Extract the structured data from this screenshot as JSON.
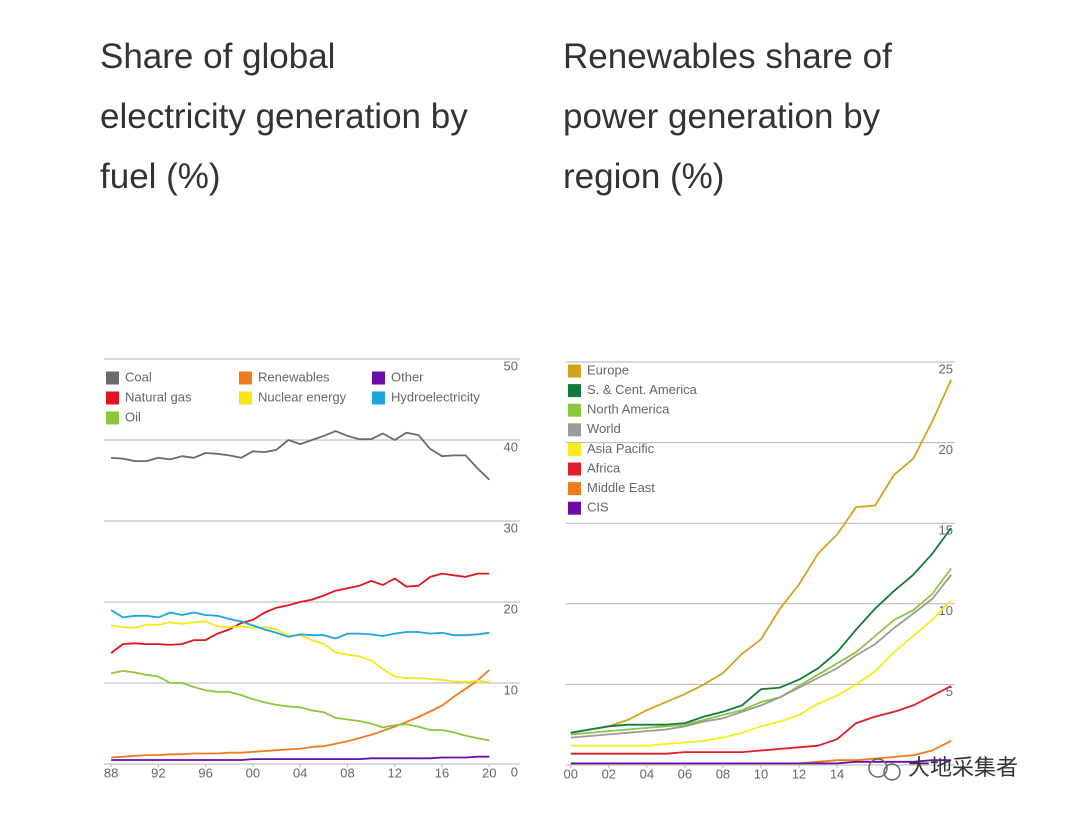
{
  "chart_data": [
    {
      "type": "line",
      "title": [
        "Share of global",
        "electricity generation by",
        "fuel (%)"
      ],
      "x": [
        1988,
        1989,
        1990,
        1991,
        1992,
        1993,
        1994,
        1995,
        1996,
        1997,
        1998,
        1999,
        2000,
        2001,
        2002,
        2003,
        2004,
        2005,
        2006,
        2007,
        2008,
        2009,
        2010,
        2011,
        2012,
        2013,
        2014,
        2015,
        2016,
        2017,
        2018,
        2019,
        2020
      ],
      "xlim": [
        1987.4,
        2022.6
      ],
      "xticks": [
        {
          "value": 1988,
          "label": "88"
        },
        {
          "value": 1992,
          "label": "92"
        },
        {
          "value": 1996,
          "label": "96"
        },
        {
          "value": 2000,
          "label": "00"
        },
        {
          "value": 2004,
          "label": "04"
        },
        {
          "value": 2008,
          "label": "08"
        },
        {
          "value": 2012,
          "label": "12"
        },
        {
          "value": 2016,
          "label": "16"
        },
        {
          "value": 2020,
          "label": "20"
        }
      ],
      "ylim": [
        0,
        50
      ],
      "yticks": [
        0,
        10,
        20,
        30,
        40,
        50
      ],
      "grid": true,
      "legend": "top-left",
      "legend_columns": 3,
      "series": [
        {
          "name": "Coal",
          "color": "#6b6b6b",
          "values": [
            37.8,
            37.7,
            37.4,
            37.4,
            37.8,
            37.6,
            38.0,
            37.8,
            38.4,
            38.3,
            38.1,
            37.8,
            38.6,
            38.5,
            38.8,
            40.0,
            39.5,
            40.0,
            40.5,
            41.1,
            40.5,
            40.1,
            40.1,
            40.8,
            40.0,
            40.9,
            40.6,
            38.9,
            38.0,
            38.1,
            38.1,
            36.5,
            35.1
          ]
        },
        {
          "name": "Renewables",
          "color": "#f07a1c",
          "values": [
            0.8,
            0.9,
            1.0,
            1.1,
            1.1,
            1.2,
            1.2,
            1.3,
            1.3,
            1.3,
            1.4,
            1.4,
            1.5,
            1.6,
            1.7,
            1.8,
            1.9,
            2.1,
            2.2,
            2.5,
            2.8,
            3.2,
            3.6,
            4.1,
            4.6,
            5.2,
            5.8,
            6.5,
            7.2,
            8.3,
            9.3,
            10.3,
            11.6
          ]
        },
        {
          "name": "Other",
          "color": "#6a0dad",
          "values": [
            0.5,
            0.5,
            0.5,
            0.5,
            0.5,
            0.5,
            0.5,
            0.5,
            0.5,
            0.5,
            0.5,
            0.5,
            0.6,
            0.6,
            0.6,
            0.6,
            0.6,
            0.6,
            0.6,
            0.6,
            0.6,
            0.6,
            0.7,
            0.7,
            0.7,
            0.7,
            0.7,
            0.7,
            0.8,
            0.8,
            0.8,
            0.9,
            0.9
          ]
        },
        {
          "name": "Natural gas",
          "color": "#e2151f",
          "values": [
            13.7,
            14.8,
            14.9,
            14.8,
            14.8,
            14.7,
            14.8,
            15.3,
            15.3,
            16.1,
            16.6,
            17.4,
            17.8,
            18.7,
            19.3,
            19.6,
            20.0,
            20.3,
            20.8,
            21.4,
            21.7,
            22.0,
            22.6,
            22.1,
            22.9,
            21.9,
            22.0,
            23.1,
            23.5,
            23.3,
            23.1,
            23.5,
            23.5
          ]
        },
        {
          "name": "Nuclear energy",
          "color": "#f7e61a",
          "values": [
            17.1,
            16.9,
            16.8,
            17.2,
            17.2,
            17.5,
            17.3,
            17.5,
            17.6,
            17.0,
            16.9,
            17.0,
            16.8,
            16.9,
            16.6,
            15.8,
            15.9,
            15.3,
            14.8,
            13.8,
            13.5,
            13.3,
            12.8,
            11.7,
            10.8,
            10.6,
            10.6,
            10.5,
            10.4,
            10.2,
            10.1,
            10.3,
            10.1
          ]
        },
        {
          "name": "Hydroelectricity",
          "color": "#1ba6dd",
          "values": [
            19.0,
            18.1,
            18.3,
            18.3,
            18.1,
            18.7,
            18.4,
            18.7,
            18.4,
            18.3,
            17.9,
            17.6,
            17.1,
            16.6,
            16.2,
            15.7,
            16.0,
            15.9,
            15.9,
            15.5,
            16.1,
            16.1,
            16.0,
            15.8,
            16.1,
            16.3,
            16.3,
            16.1,
            16.2,
            15.9,
            15.9,
            16.0,
            16.2
          ]
        },
        {
          "name": "Oil",
          "color": "#8cc63f",
          "values": [
            11.2,
            11.5,
            11.3,
            11.0,
            10.8,
            10.0,
            10.0,
            9.5,
            9.1,
            8.9,
            8.9,
            8.5,
            8.0,
            7.6,
            7.3,
            7.1,
            7.0,
            6.6,
            6.4,
            5.7,
            5.5,
            5.3,
            5.0,
            4.5,
            4.8,
            4.9,
            4.6,
            4.2,
            4.2,
            3.9,
            3.5,
            3.2,
            2.9
          ]
        }
      ]
    },
    {
      "type": "line",
      "title": [
        "Renewables share of",
        "power generation by",
        "region (%)"
      ],
      "x": [
        2000,
        2001,
        2002,
        2003,
        2004,
        2005,
        2006,
        2007,
        2008,
        2009,
        2010,
        2011,
        2012,
        2013,
        2014,
        2015,
        2016,
        2017,
        2018,
        2019,
        2020
      ],
      "xlim": [
        1999.75,
        2020.2
      ],
      "xticks": [
        {
          "value": 2000,
          "label": "00"
        },
        {
          "value": 2002,
          "label": "02"
        },
        {
          "value": 2004,
          "label": "04"
        },
        {
          "value": 2006,
          "label": "06"
        },
        {
          "value": 2008,
          "label": "08"
        },
        {
          "value": 2010,
          "label": "10"
        },
        {
          "value": 2012,
          "label": "12"
        },
        {
          "value": 2014,
          "label": "14"
        }
      ],
      "ylim": [
        0,
        25
      ],
      "yticks": [
        5,
        10,
        15,
        20,
        25
      ],
      "grid": true,
      "legend": "top-left",
      "legend_columns": 1,
      "series": [
        {
          "name": "Europe",
          "color": "#d4a21c",
          "values": [
            2.0,
            2.2,
            2.4,
            2.8,
            3.4,
            3.9,
            4.4,
            5.0,
            5.7,
            6.9,
            7.8,
            9.7,
            11.2,
            13.1,
            14.3,
            16.0,
            16.1,
            18.0,
            19.0,
            21.3,
            23.9
          ]
        },
        {
          "name": "S. & Cent. America",
          "color": "#127a3a",
          "values": [
            2.0,
            2.2,
            2.4,
            2.5,
            2.5,
            2.5,
            2.6,
            3.0,
            3.3,
            3.7,
            4.7,
            4.8,
            5.3,
            6.0,
            7.0,
            8.4,
            9.7,
            10.8,
            11.8,
            13.1,
            14.7
          ]
        },
        {
          "name": "North America",
          "color": "#8cc63f",
          "values": [
            1.9,
            2.0,
            2.1,
            2.2,
            2.3,
            2.4,
            2.5,
            2.8,
            3.1,
            3.4,
            3.9,
            4.2,
            4.9,
            5.6,
            6.3,
            7.0,
            8.0,
            9.0,
            9.6,
            10.6,
            12.2
          ]
        },
        {
          "name": "World",
          "color": "#9b9b9b",
          "values": [
            1.7,
            1.8,
            1.9,
            2.0,
            2.1,
            2.2,
            2.4,
            2.7,
            2.9,
            3.3,
            3.7,
            4.2,
            4.8,
            5.4,
            6.0,
            6.8,
            7.5,
            8.5,
            9.4,
            10.3,
            11.8
          ]
        },
        {
          "name": "Asia Pacific",
          "color": "#f7ec1a",
          "values": [
            1.2,
            1.2,
            1.2,
            1.2,
            1.2,
            1.3,
            1.4,
            1.5,
            1.7,
            2.0,
            2.4,
            2.7,
            3.1,
            3.8,
            4.3,
            5.0,
            5.8,
            7.0,
            8.0,
            9.0,
            10.2
          ]
        },
        {
          "name": "Africa",
          "color": "#e01e2a",
          "values": [
            0.7,
            0.7,
            0.7,
            0.7,
            0.7,
            0.7,
            0.8,
            0.8,
            0.8,
            0.8,
            0.9,
            1.0,
            1.1,
            1.2,
            1.6,
            2.6,
            3.0,
            3.3,
            3.7,
            4.3,
            4.9
          ]
        },
        {
          "name": "Middle East",
          "color": "#f07a1c",
          "values": [
            0.1,
            0.1,
            0.1,
            0.1,
            0.1,
            0.1,
            0.1,
            0.1,
            0.1,
            0.1,
            0.1,
            0.1,
            0.1,
            0.2,
            0.3,
            0.3,
            0.4,
            0.5,
            0.6,
            0.9,
            1.5
          ]
        },
        {
          "name": "CIS",
          "color": "#6a0da8",
          "values": [
            0.1,
            0.1,
            0.1,
            0.1,
            0.1,
            0.1,
            0.1,
            0.1,
            0.1,
            0.1,
            0.1,
            0.1,
            0.1,
            0.1,
            0.1,
            0.2,
            0.2,
            0.2,
            0.2,
            0.3,
            0.3
          ]
        }
      ]
    }
  ],
  "watermark": "大地采集者"
}
